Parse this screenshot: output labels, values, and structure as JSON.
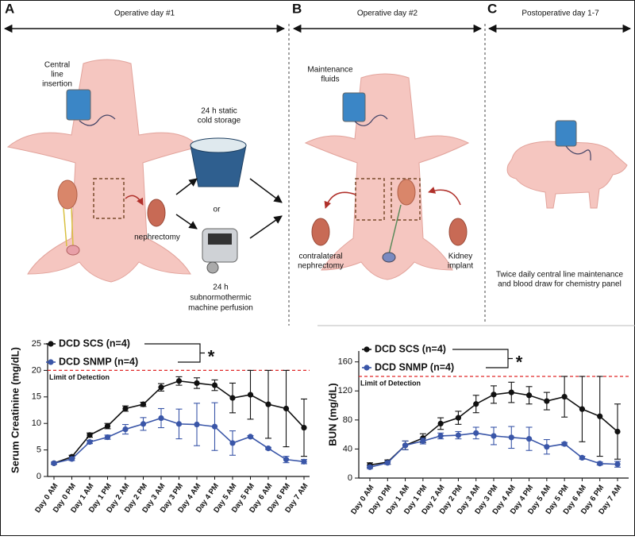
{
  "panels": [
    {
      "letter": "A",
      "title": "Operative day #1",
      "labels": [
        [
          "Central",
          "line",
          "insertion"
        ],
        [
          "24 h static",
          "cold storage"
        ],
        [
          "or"
        ],
        [
          "nephrectomy"
        ],
        [
          "24 h",
          "subnormothermic",
          "machine perfusion"
        ]
      ]
    },
    {
      "letter": "B",
      "title": "Operative day #2",
      "labels": [
        [
          "Maintenance",
          "fluids"
        ],
        [
          "contralateral",
          "nephrectomy"
        ],
        [
          "Kidney",
          "implant"
        ]
      ]
    },
    {
      "letter": "C",
      "title": "Postoperative day 1-7",
      "labels": [
        [
          "Twice daily central line maintenance",
          "and blood draw for chemistry panel"
        ]
      ]
    }
  ],
  "chart_data": [
    {
      "type": "line",
      "ylabel": "Serum  Creatinine (mg/dL)",
      "categories": [
        "Day 0 AM",
        "Day 0 PM",
        "Day 1 AM",
        "Day 1 PM",
        "Day 2 AM",
        "Day 2 PM",
        "Day 3 AM",
        "Day 3 PM",
        "Day 4 AM",
        "Day 4 PM",
        "Day 5 AM",
        "Day 5 PM",
        "Day 6 AM",
        "Day 6 PM",
        "Day 7 AM"
      ],
      "ylim": [
        0,
        25
      ],
      "yticks": [
        0,
        5,
        10,
        15,
        20,
        25
      ],
      "threshold": {
        "value": 20,
        "label": "Limit of Detection",
        "color": "#e02828"
      },
      "annotation": "*",
      "series": [
        {
          "name": "DCD SCS (n=4)",
          "color": "#111111",
          "values": [
            2.5,
            3.7,
            7.8,
            9.5,
            12.8,
            13.6,
            16.8,
            18.0,
            17.6,
            17.2,
            14.8,
            15.4,
            13.6,
            12.8,
            9.2
          ],
          "errors": [
            0.2,
            0.3,
            0.4,
            0.5,
            0.5,
            0.4,
            0.7,
            0.8,
            1.0,
            1.0,
            2.8,
            4.6,
            6.4,
            7.2,
            5.4
          ]
        },
        {
          "name": "DCD SNMP (n=4)",
          "color": "#3a56a8",
          "values": [
            2.5,
            3.3,
            6.5,
            7.4,
            8.9,
            9.9,
            11.0,
            9.9,
            9.8,
            9.4,
            6.3,
            7.5,
            5.3,
            3.2,
            2.8
          ],
          "errors": [
            0.2,
            0.3,
            0.3,
            0.4,
            0.9,
            1.2,
            1.8,
            2.8,
            4.0,
            4.5,
            2.3,
            0.2,
            0.2,
            0.6,
            0.4
          ]
        }
      ]
    },
    {
      "type": "line",
      "ylabel": "BUN (mg/dL)",
      "categories": [
        "Day 0 AM",
        "Day 0 PM",
        "Day 1 AM",
        "Day 1 PM",
        "Day 2 AM",
        "Day 2 PM",
        "Day 3 AM",
        "Day 3 PM",
        "Day 4 AM",
        "Day 4 PM",
        "Day 5 AM",
        "Day 5 PM",
        "Day 6 AM",
        "Day 6 PM",
        "Day 7 AM"
      ],
      "ylim": [
        0,
        175
      ],
      "yticks": [
        0,
        40,
        80,
        120,
        160
      ],
      "threshold": {
        "value": 140,
        "label": "Limit of Detection",
        "color": "#e02828"
      },
      "annotation": "*",
      "series": [
        {
          "name": "DCD SCS (n=4)",
          "color": "#111111",
          "values": [
            18,
            22,
            45,
            55,
            75,
            83,
            102,
            115,
            118,
            114,
            106,
            112,
            95,
            85,
            64
          ],
          "errors": [
            3,
            3,
            6,
            6,
            8,
            9,
            12,
            12,
            14,
            12,
            12,
            28,
            45,
            55,
            38
          ]
        },
        {
          "name": "DCD SNMP (n=4)",
          "color": "#3a56a8",
          "values": [
            15,
            21,
            45,
            51,
            58,
            59,
            62,
            58,
            56,
            54,
            43,
            47,
            28,
            20,
            19
          ],
          "errors": [
            2,
            2,
            6,
            4,
            4,
            5,
            8,
            12,
            15,
            16,
            10,
            2,
            2,
            2,
            4
          ]
        }
      ]
    }
  ]
}
